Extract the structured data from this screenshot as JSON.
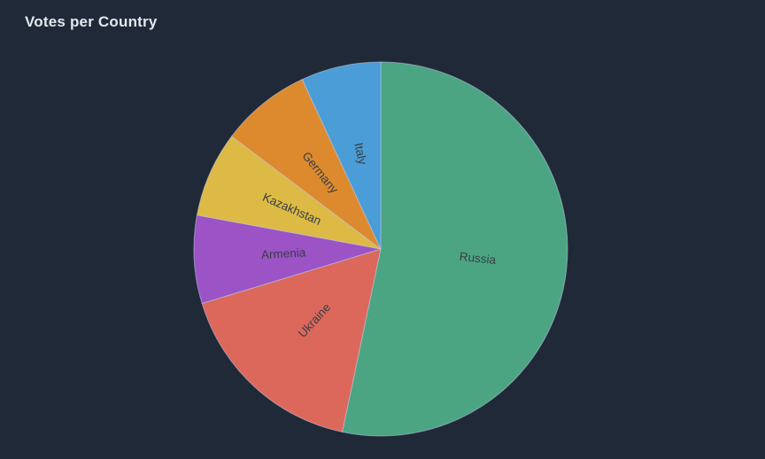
{
  "header": {
    "title": "Votes per Country"
  },
  "theme": {
    "background": "#1f2937",
    "title_color": "#e4e8ee",
    "label_color": "#383e45",
    "slice_stroke": "rgba(196,201,229,0.55)"
  },
  "chart_data": {
    "type": "pie",
    "title": "Votes per Country",
    "start_angle_deg": 0,
    "direction": "clockwise",
    "labels_inside": true,
    "legend": "none",
    "slices": [
      {
        "label": "Russia",
        "value": 53.3,
        "color": "#4ba583"
      },
      {
        "label": "Ukraine",
        "value": 17.0,
        "color": "#dc685c"
      },
      {
        "label": "Armenia",
        "value": 7.6,
        "color": "#9b53c6"
      },
      {
        "label": "Kazakhstan",
        "value": 7.4,
        "color": "#ddba45"
      },
      {
        "label": "Germany",
        "value": 7.8,
        "color": "#dd8a2e"
      },
      {
        "label": "Italy",
        "value": 6.9,
        "color": "#4a9dd6"
      }
    ]
  }
}
